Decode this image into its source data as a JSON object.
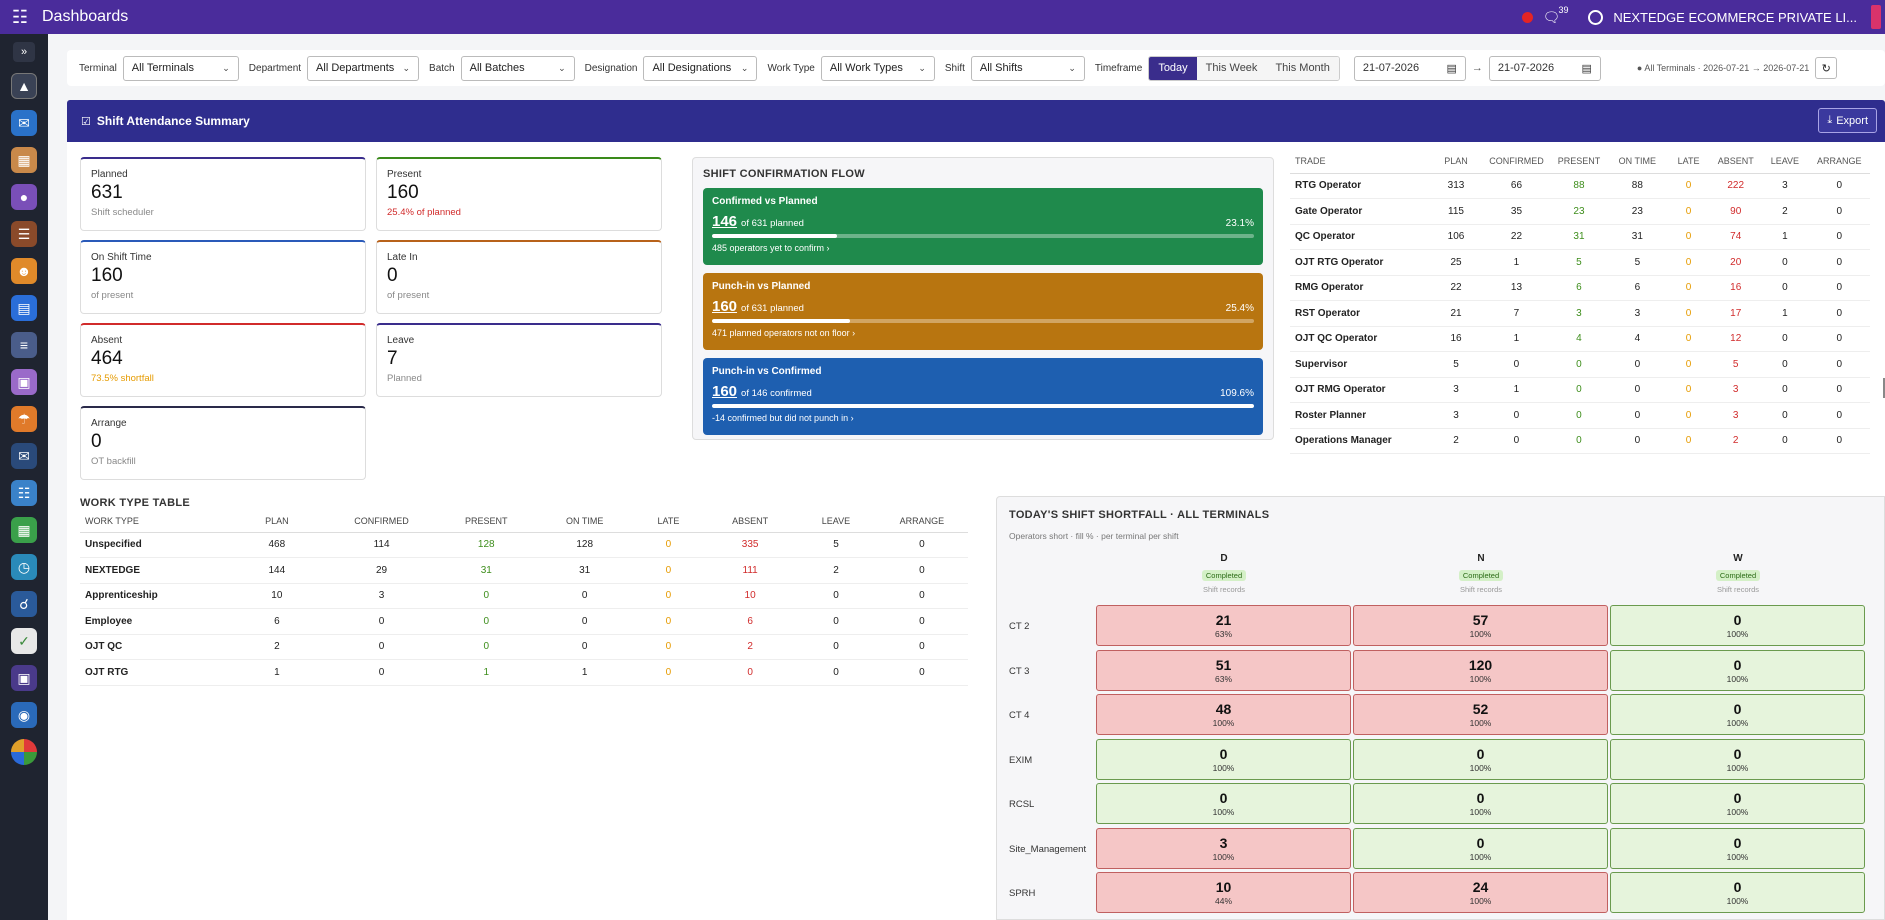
{
  "app": {
    "title": "Dashboards",
    "notifications": "39",
    "company": "NEXTEDGE ECOMMERCE PRIVATE LI..."
  },
  "filters": {
    "terminal": {
      "label": "Terminal",
      "value": "All Terminals"
    },
    "department": {
      "label": "Department",
      "value": "All Departments"
    },
    "batch": {
      "label": "Batch",
      "value": "All Batches"
    },
    "designation": {
      "label": "Designation",
      "value": "All Designations"
    },
    "work_type": {
      "label": "Work Type",
      "value": "All Work Types"
    },
    "shift": {
      "label": "Shift",
      "value": "All Shifts"
    },
    "timeframe": {
      "label": "Timeframe",
      "options": [
        "Today",
        "This Week",
        "This Month"
      ],
      "active": "Today"
    },
    "date_from": "21-07-2026",
    "date_to": "21-07-2026",
    "arrow": "→",
    "summary": "All Terminals · 2026-07-21 → 2026-07-21"
  },
  "panel": {
    "title": "Shift Attendance Summary",
    "export_label": "Export"
  },
  "kpis": {
    "planned": {
      "label": "Planned",
      "value": "631",
      "sub": "Shift scheduler"
    },
    "present": {
      "label": "Present",
      "value": "160",
      "sub": "25.4% of planned"
    },
    "on_shift": {
      "label": "On Shift Time",
      "value": "160",
      "sub": "of present"
    },
    "late_in": {
      "label": "Late In",
      "value": "0",
      "sub": "of present"
    },
    "absent": {
      "label": "Absent",
      "value": "464",
      "sub": "73.5% shortfall"
    },
    "leave": {
      "label": "Leave",
      "value": "7",
      "sub": "Planned"
    },
    "arrange": {
      "label": "Arrange",
      "value": "0",
      "sub": "OT backfill"
    }
  },
  "flow": {
    "title": "SHIFT CONFIRMATION FLOW",
    "cards": [
      {
        "title": "Confirmed vs Planned",
        "value": "146",
        "of": "of 631 planned",
        "pct": "23.1%",
        "fill": 23.1,
        "note": "485 operators yet to confirm ›",
        "color": "#1f8a4c"
      },
      {
        "title": "Punch-in vs Planned",
        "value": "160",
        "of": "of 631 planned",
        "pct": "25.4%",
        "fill": 25.4,
        "note": "471 planned operators not on floor ›",
        "color": "#b87510"
      },
      {
        "title": "Punch-in vs Confirmed",
        "value": "160",
        "of": "of 146 confirmed",
        "pct": "109.6%",
        "fill": 100,
        "note": "-14 confirmed but did not punch in ›",
        "color": "#1e5fb0"
      }
    ]
  },
  "trade_table": {
    "headers": [
      "TRADE",
      "PLAN",
      "CONFIRMED",
      "PRESENT",
      "ON TIME",
      "LATE",
      "ABSENT",
      "LEAVE",
      "ARRANGE"
    ],
    "rows": [
      [
        "RTG Operator",
        "313",
        "66",
        "88",
        "88",
        "0",
        "222",
        "3",
        "0"
      ],
      [
        "Gate Operator",
        "115",
        "35",
        "23",
        "23",
        "0",
        "90",
        "2",
        "0"
      ],
      [
        "QC Operator",
        "106",
        "22",
        "31",
        "31",
        "0",
        "74",
        "1",
        "0"
      ],
      [
        "OJT RTG Operator",
        "25",
        "1",
        "5",
        "5",
        "0",
        "20",
        "0",
        "0"
      ],
      [
        "RMG Operator",
        "22",
        "13",
        "6",
        "6",
        "0",
        "16",
        "0",
        "0"
      ],
      [
        "RST Operator",
        "21",
        "7",
        "3",
        "3",
        "0",
        "17",
        "1",
        "0"
      ],
      [
        "OJT QC Operator",
        "16",
        "1",
        "4",
        "4",
        "0",
        "12",
        "0",
        "0"
      ],
      [
        "Supervisor",
        "5",
        "0",
        "0",
        "0",
        "0",
        "5",
        "0",
        "0"
      ],
      [
        "OJT RMG Operator",
        "3",
        "1",
        "0",
        "0",
        "0",
        "3",
        "0",
        "0"
      ],
      [
        "Roster Planner",
        "3",
        "0",
        "0",
        "0",
        "0",
        "3",
        "0",
        "0"
      ],
      [
        "Operations Manager",
        "2",
        "0",
        "0",
        "0",
        "0",
        "2",
        "0",
        "0"
      ]
    ]
  },
  "work_type": {
    "title": "WORK TYPE TABLE",
    "headers": [
      "WORK TYPE",
      "PLAN",
      "CONFIRMED",
      "PRESENT",
      "ON TIME",
      "LATE",
      "ABSENT",
      "LEAVE",
      "ARRANGE"
    ],
    "rows": [
      [
        "Unspecified",
        "468",
        "114",
        "128",
        "128",
        "0",
        "335",
        "5",
        "0"
      ],
      [
        "NEXTEDGE",
        "144",
        "29",
        "31",
        "31",
        "0",
        "111",
        "2",
        "0"
      ],
      [
        "Apprenticeship",
        "10",
        "3",
        "0",
        "0",
        "0",
        "10",
        "0",
        "0"
      ],
      [
        "Employee",
        "6",
        "0",
        "0",
        "0",
        "0",
        "6",
        "0",
        "0"
      ],
      [
        "OJT QC",
        "2",
        "0",
        "0",
        "0",
        "0",
        "2",
        "0",
        "0"
      ],
      [
        "OJT RTG",
        "1",
        "0",
        "1",
        "1",
        "0",
        "0",
        "0",
        "0"
      ]
    ]
  },
  "shortfall": {
    "title": "TODAY'S SHIFT SHORTFALL · ALL TERMINALS",
    "subtitle": "Operators short · fill % · per terminal per shift",
    "shifts": [
      {
        "name": "D",
        "status": "Completed",
        "records": "Shift records"
      },
      {
        "name": "N",
        "status": "Completed",
        "records": "Shift records"
      },
      {
        "name": "W",
        "status": "Completed",
        "records": "Shift records"
      }
    ],
    "rows": [
      {
        "terminal": "CT 2",
        "cells": [
          {
            "n": "21",
            "p": "63%",
            "s": "red"
          },
          {
            "n": "57",
            "p": "100%",
            "s": "red"
          },
          {
            "n": "0",
            "p": "100%",
            "s": "green"
          }
        ]
      },
      {
        "terminal": "CT 3",
        "cells": [
          {
            "n": "51",
            "p": "63%",
            "s": "red"
          },
          {
            "n": "120",
            "p": "100%",
            "s": "red"
          },
          {
            "n": "0",
            "p": "100%",
            "s": "green"
          }
        ]
      },
      {
        "terminal": "CT 4",
        "cells": [
          {
            "n": "48",
            "p": "100%",
            "s": "red"
          },
          {
            "n": "52",
            "p": "100%",
            "s": "red"
          },
          {
            "n": "0",
            "p": "100%",
            "s": "green"
          }
        ]
      },
      {
        "terminal": "EXIM",
        "cells": [
          {
            "n": "0",
            "p": "100%",
            "s": "green"
          },
          {
            "n": "0",
            "p": "100%",
            "s": "green"
          },
          {
            "n": "0",
            "p": "100%",
            "s": "green"
          }
        ]
      },
      {
        "terminal": "RCSL",
        "cells": [
          {
            "n": "0",
            "p": "100%",
            "s": "green"
          },
          {
            "n": "0",
            "p": "100%",
            "s": "green"
          },
          {
            "n": "0",
            "p": "100%",
            "s": "green"
          }
        ]
      },
      {
        "terminal": "Site_Management",
        "cells": [
          {
            "n": "3",
            "p": "100%",
            "s": "red"
          },
          {
            "n": "0",
            "p": "100%",
            "s": "green"
          },
          {
            "n": "0",
            "p": "100%",
            "s": "green"
          }
        ]
      },
      {
        "terminal": "SPRH",
        "cells": [
          {
            "n": "10",
            "p": "44%",
            "s": "red"
          },
          {
            "n": "24",
            "p": "100%",
            "s": "red"
          },
          {
            "n": "0",
            "p": "100%",
            "s": "green"
          }
        ]
      }
    ]
  },
  "sidebar_icons": [
    "network-icon",
    "mail-icon",
    "grid-app-icon",
    "team-icon",
    "document-icon",
    "user-group-icon",
    "calendar-icon",
    "sliders-icon",
    "box-icon",
    "umbrella-icon",
    "message-icon",
    "report-icon",
    "spreadsheet-icon",
    "clock-icon",
    "headset-icon",
    "checklist-icon",
    "media-icon",
    "globe-icon",
    "pie-chart-icon"
  ]
}
